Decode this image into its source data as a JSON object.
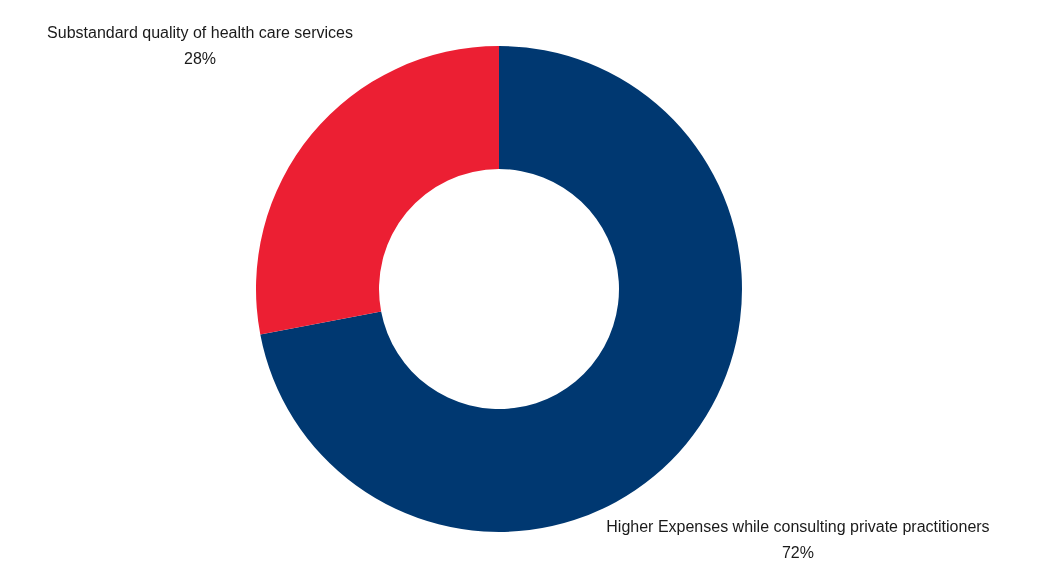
{
  "chart_data": {
    "type": "donut",
    "categories": [
      "Higher Expenses while consulting private practitioners",
      "Substandard quality of health care services"
    ],
    "values": [
      72,
      28
    ],
    "value_labels": [
      "72%",
      "28%"
    ],
    "colors": [
      "#003871",
      "#ec1f33"
    ]
  }
}
